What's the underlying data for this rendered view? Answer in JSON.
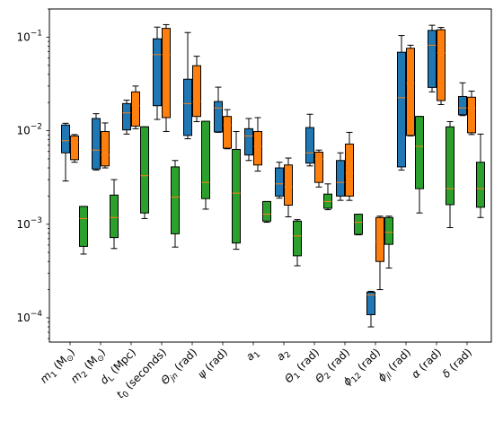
{
  "chart_data": {
    "type": "boxplot",
    "yscale": "log",
    "ylim": [
      5.5e-05,
      0.2
    ],
    "grid": false,
    "legend": "none",
    "title": "",
    "xlabel": "",
    "ylabel": "",
    "ytick_values": [
      0.0001,
      0.001,
      0.01,
      0.1
    ],
    "ytick_labels": [
      {
        "base": "10",
        "exp": "−4"
      },
      {
        "base": "10",
        "exp": "−3"
      },
      {
        "base": "10",
        "exp": "−2"
      },
      {
        "base": "10",
        "exp": "−1"
      }
    ],
    "categories": [
      {
        "sym": "m",
        "sub": "1",
        "unit": "(M",
        "unitsub": "⊙",
        "close": ")"
      },
      {
        "sym": "m",
        "sub": "2",
        "unit": "(M",
        "unitsub": "⊙",
        "close": ")"
      },
      {
        "sym": "d",
        "sub": "L",
        "unit": "(Mpc)",
        "unitsub": "",
        "close": ""
      },
      {
        "sym": "t",
        "sub": "0",
        "unit": "(seconds)",
        "unitsub": "",
        "close": ""
      },
      {
        "sym": "Θ",
        "sub": "jn",
        "unit": "(rad)",
        "unitsub": "",
        "close": ""
      },
      {
        "sym": "ψ",
        "sub": "",
        "unit": "(rad)",
        "unitsub": "",
        "close": ""
      },
      {
        "sym": "a",
        "sub": "1",
        "unit": "",
        "unitsub": "",
        "close": ""
      },
      {
        "sym": "a",
        "sub": "2",
        "unit": "",
        "unitsub": "",
        "close": ""
      },
      {
        "sym": "Θ",
        "sub": "1",
        "unit": "(rad)",
        "unitsub": "",
        "close": ""
      },
      {
        "sym": "Θ",
        "sub": "2",
        "unit": "(rad)",
        "unitsub": "",
        "close": ""
      },
      {
        "sym": "ϕ",
        "sub": "12",
        "unit": "(rad)",
        "unitsub": "",
        "close": ""
      },
      {
        "sym": "ϕ",
        "sub": "jl",
        "unit": "(rad)",
        "unitsub": "",
        "close": ""
      },
      {
        "sym": "α",
        "sub": "",
        "unit": "(rad)",
        "unitsub": "",
        "close": ""
      },
      {
        "sym": "δ",
        "sub": "",
        "unit": "(rad)",
        "unitsub": "",
        "close": ""
      }
    ],
    "series": [
      {
        "color": "#1f77b4",
        "boxes": [
          {
            "whislo": 0.0029,
            "q1": 0.0058,
            "med": 0.0078,
            "q3": 0.0115,
            "whishi": 0.012
          },
          {
            "whislo": 0.0038,
            "q1": 0.0039,
            "med": 0.0062,
            "q3": 0.0135,
            "whishi": 0.0152
          },
          {
            "whislo": 0.0092,
            "q1": 0.0102,
            "med": 0.0155,
            "q3": 0.0195,
            "whishi": 0.0212
          },
          {
            "whislo": 0.0132,
            "q1": 0.0185,
            "med": 0.065,
            "q3": 0.096,
            "whishi": 0.128
          },
          {
            "whislo": 0.0082,
            "q1": 0.0089,
            "med": 0.0195,
            "q3": 0.0355,
            "whishi": 0.112
          },
          {
            "whislo": 0.0096,
            "q1": 0.0097,
            "med": 0.0175,
            "q3": 0.0205,
            "whishi": 0.0292
          },
          {
            "whislo": 0.0048,
            "q1": 0.0055,
            "med": 0.0088,
            "q3": 0.0105,
            "whishi": 0.0135
          },
          {
            "whislo": 0.0019,
            "q1": 0.002,
            "med": 0.0027,
            "q3": 0.004,
            "whishi": 0.0046
          },
          {
            "whislo": 0.0042,
            "q1": 0.0045,
            "med": 0.0058,
            "q3": 0.0108,
            "whishi": 0.015
          },
          {
            "whislo": 0.0018,
            "q1": 0.002,
            "med": 0.0028,
            "q3": 0.0048,
            "whishi": 0.0058
          },
          {
            "whislo": 8e-05,
            "q1": 0.000108,
            "med": 0.000175,
            "q3": 0.000188,
            "whishi": 0.000192
          },
          {
            "whislo": 0.0038,
            "q1": 0.0041,
            "med": 0.0225,
            "q3": 0.069,
            "whishi": 0.104
          },
          {
            "whislo": 0.026,
            "q1": 0.029,
            "med": 0.082,
            "q3": 0.118,
            "whishi": 0.134
          },
          {
            "whislo": 0.0145,
            "q1": 0.0148,
            "med": 0.0175,
            "q3": 0.0232,
            "whishi": 0.0325
          }
        ]
      },
      {
        "color": "#ff7f0e",
        "boxes": [
          {
            "whislo": 0.0046,
            "q1": 0.0049,
            "med": 0.0075,
            "q3": 0.0088,
            "whishi": 0.0091
          },
          {
            "whislo": 0.004,
            "q1": 0.0042,
            "med": 0.0055,
            "q3": 0.0098,
            "whishi": 0.0121
          },
          {
            "whislo": 0.0105,
            "q1": 0.0112,
            "med": 0.0185,
            "q3": 0.026,
            "whishi": 0.03
          },
          {
            "whislo": 0.0098,
            "q1": 0.0138,
            "med": 0.065,
            "q3": 0.124,
            "whishi": 0.136
          },
          {
            "whislo": 0.0125,
            "q1": 0.0142,
            "med": 0.0205,
            "q3": 0.0495,
            "whishi": 0.0625
          },
          {
            "whislo": 0.0064,
            "q1": 0.0065,
            "med": 0.0115,
            "q3": 0.0142,
            "whishi": 0.0168
          },
          {
            "whislo": 0.0037,
            "q1": 0.0043,
            "med": 0.0068,
            "q3": 0.0098,
            "whishi": 0.0138
          },
          {
            "whislo": 0.0012,
            "q1": 0.0016,
            "med": 0.0025,
            "q3": 0.0043,
            "whishi": 0.0051
          },
          {
            "whislo": 0.0025,
            "q1": 0.0028,
            "med": 0.005,
            "q3": 0.0059,
            "whishi": 0.0062
          },
          {
            "whislo": 0.0018,
            "q1": 0.002,
            "med": 0.0035,
            "q3": 0.0072,
            "whishi": 0.0096
          },
          {
            "whislo": 0.0002,
            "q1": 0.0004,
            "med": 0.00065,
            "q3": 0.00118,
            "whishi": 0.00122
          },
          {
            "whislo": 0.0088,
            "q1": 0.0089,
            "med": 0.032,
            "q3": 0.076,
            "whishi": 0.082
          },
          {
            "whislo": 0.019,
            "q1": 0.021,
            "med": 0.068,
            "q3": 0.12,
            "whishi": 0.127
          },
          {
            "whislo": 0.0091,
            "q1": 0.0095,
            "med": 0.0175,
            "q3": 0.0228,
            "whishi": 0.0265
          }
        ]
      },
      {
        "color": "#2ca02c",
        "boxes": [
          {
            "whislo": 0.00048,
            "q1": 0.00058,
            "med": 0.00115,
            "q3": 0.00155,
            "whishi": 0.00155
          },
          {
            "whislo": 0.00055,
            "q1": 0.00072,
            "med": 0.00118,
            "q3": 0.00205,
            "whishi": 0.003
          },
          {
            "whislo": 0.00115,
            "q1": 0.00132,
            "med": 0.0033,
            "q3": 0.011,
            "whishi": 0.011
          },
          {
            "whislo": 0.00057,
            "q1": 0.00079,
            "med": 0.00195,
            "q3": 0.0041,
            "whishi": 0.0048
          },
          {
            "whislo": 0.00145,
            "q1": 0.00188,
            "med": 0.0028,
            "q3": 0.0126,
            "whishi": 0.0126
          },
          {
            "whislo": 0.00054,
            "q1": 0.00063,
            "med": 0.00215,
            "q3": 0.0063,
            "whishi": 0.0098
          },
          {
            "whislo": 0.00105,
            "q1": 0.00108,
            "med": 0.00128,
            "q3": 0.00175,
            "whishi": 0.00175
          },
          {
            "whislo": 0.00036,
            "q1": 0.00046,
            "med": 0.00075,
            "q3": 0.00108,
            "whishi": 0.00112
          },
          {
            "whislo": 0.00143,
            "q1": 0.00148,
            "med": 0.00175,
            "q3": 0.0021,
            "whishi": 0.0027
          },
          {
            "whislo": 0.00077,
            "q1": 0.00078,
            "med": 0.00105,
            "q3": 0.00128,
            "whishi": 0.00128
          },
          {
            "whislo": 0.00034,
            "q1": 0.00061,
            "med": 0.00082,
            "q3": 0.00118,
            "whishi": 0.00122
          },
          {
            "whislo": 0.00132,
            "q1": 0.0024,
            "med": 0.0068,
            "q3": 0.0142,
            "whishi": 0.0142
          },
          {
            "whislo": 0.00092,
            "q1": 0.00162,
            "med": 0.0024,
            "q3": 0.011,
            "whishi": 0.0125
          },
          {
            "whislo": 0.00118,
            "q1": 0.00152,
            "med": 0.0024,
            "q3": 0.0046,
            "whishi": 0.0092
          }
        ]
      }
    ]
  }
}
